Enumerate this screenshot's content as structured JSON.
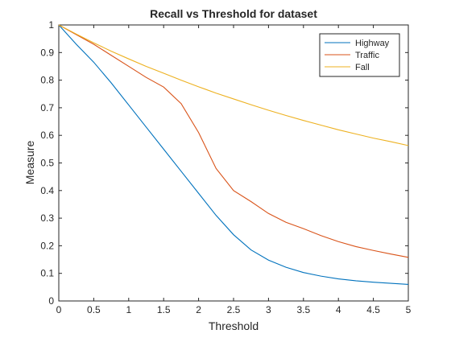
{
  "chart_data": {
    "type": "line",
    "title": "Recall vs Threshold for dataset",
    "xlabel": "Threshold",
    "ylabel": "Measure",
    "xlim": [
      0,
      5
    ],
    "ylim": [
      0,
      1
    ],
    "xticks": [
      "0",
      "0.5",
      "1",
      "1.5",
      "2",
      "2.5",
      "3",
      "3.5",
      "4",
      "4.5",
      "5"
    ],
    "yticks": [
      "0",
      "0.1",
      "0.2",
      "0.3",
      "0.4",
      "0.5",
      "0.6",
      "0.7",
      "0.8",
      "0.9",
      "1"
    ],
    "grid": false,
    "legend_position": "top-right",
    "x": [
      0,
      0.25,
      0.5,
      0.75,
      1,
      1.25,
      1.5,
      1.75,
      2,
      2.25,
      2.5,
      2.75,
      3,
      3.25,
      3.5,
      3.75,
      4,
      4.25,
      4.5,
      4.75,
      5
    ],
    "series": [
      {
        "name": "Highway",
        "color": "#0072BD",
        "values": [
          1.0,
          0.93,
          0.865,
          0.79,
          0.71,
          0.63,
          0.55,
          0.47,
          0.39,
          0.31,
          0.24,
          0.185,
          0.148,
          0.122,
          0.103,
          0.09,
          0.08,
          0.073,
          0.068,
          0.064,
          0.06
        ]
      },
      {
        "name": "Traffic",
        "color": "#D95319",
        "values": [
          1.0,
          0.965,
          0.93,
          0.89,
          0.85,
          0.81,
          0.775,
          0.715,
          0.61,
          0.48,
          0.4,
          0.36,
          0.317,
          0.285,
          0.262,
          0.237,
          0.215,
          0.197,
          0.183,
          0.17,
          0.158
        ]
      },
      {
        "name": "Fall",
        "color": "#EDB120",
        "values": [
          1.0,
          0.967,
          0.935,
          0.905,
          0.877,
          0.85,
          0.825,
          0.8,
          0.776,
          0.753,
          0.732,
          0.711,
          0.691,
          0.672,
          0.654,
          0.637,
          0.62,
          0.605,
          0.59,
          0.577,
          0.563
        ]
      }
    ]
  }
}
